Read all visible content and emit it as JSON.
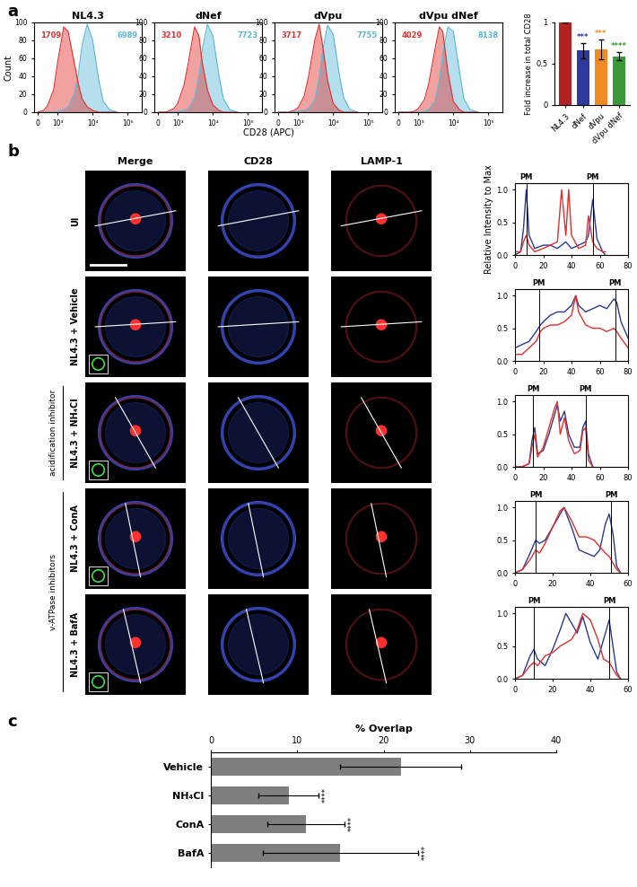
{
  "panel_labels": [
    "a",
    "b",
    "c"
  ],
  "shared_xlabel": "CD28 (APC)",
  "image_grid": {
    "columns": [
      "Merge",
      "CD28",
      "LAMP-1"
    ],
    "rows": [
      "UI",
      "NL4.3 + Vehicle",
      "NL4.3 + NH₄Cl",
      "NL4.3 + ConA",
      "NL4.3 + BafA"
    ],
    "groups": [
      {
        "label": "acidification inhibitor",
        "rows": [
          "NL4.3 + NH₄Cl"
        ]
      },
      {
        "label": "v-ATPase inhibitors",
        "rows": [
          "NL4.3 + ConA",
          "NL4.3 + BafA"
        ]
      }
    ]
  },
  "chart_data": [
    {
      "type": "area",
      "title": "NL4.3",
      "ylabel": "Count",
      "log": "x",
      "x": [
        0,
        300,
        500,
        800,
        1000,
        1500,
        2000,
        3000,
        4000,
        5000,
        7000,
        10000,
        15000,
        20000,
        30000,
        50000
      ],
      "xlim": [
        -200,
        250000
      ],
      "xticks": [
        0,
        {
          "value": 1000,
          "label": "10³"
        },
        {
          "value": 10000,
          "label": "10⁴"
        },
        {
          "value": 100000,
          "label": "10⁵"
        }
      ],
      "ylim": [
        0,
        100
      ],
      "yticks": [
        0,
        20,
        40,
        60,
        80,
        100
      ],
      "series": [
        {
          "color": "#5bb8d6",
          "mfi": 6989,
          "values": [
            0,
            0,
            0,
            0,
            1,
            3,
            6,
            20,
            45,
            75,
            98,
            80,
            35,
            12,
            3,
            0
          ]
        },
        {
          "color": "#e0302d",
          "mfi": 1709,
          "values": [
            0,
            2,
            8,
            25,
            55,
            95,
            90,
            55,
            30,
            15,
            6,
            2,
            0,
            0,
            0,
            0
          ]
        }
      ]
    },
    {
      "type": "area",
      "title": "dNef",
      "log": "x",
      "x": [
        0,
        300,
        500,
        800,
        1000,
        1500,
        2000,
        3000,
        4000,
        5000,
        7000,
        10000,
        15000,
        20000,
        30000,
        50000
      ],
      "xlim": [
        -200,
        250000
      ],
      "xticks": [
        0,
        {
          "value": 1000,
          "label": "10³"
        },
        {
          "value": 10000,
          "label": "10⁴"
        },
        {
          "value": 100000,
          "label": "10⁵"
        }
      ],
      "ylim": [
        0,
        100
      ],
      "yticks": [
        0,
        20,
        40,
        60,
        80,
        100
      ],
      "series": [
        {
          "color": "#5bb8d6",
          "mfi": 7723,
          "values": [
            0,
            0,
            0,
            0,
            1,
            2,
            4,
            15,
            40,
            70,
            98,
            85,
            40,
            15,
            3,
            0
          ]
        },
        {
          "color": "#e0302d",
          "mfi": 3210,
          "values": [
            0,
            0,
            1,
            4,
            10,
            30,
            55,
            95,
            85,
            55,
            25,
            8,
            2,
            0,
            0,
            0
          ]
        }
      ]
    },
    {
      "type": "area",
      "title": "dVpu",
      "log": "x",
      "x": [
        0,
        300,
        500,
        800,
        1000,
        1500,
        2000,
        3000,
        4000,
        5000,
        7000,
        10000,
        15000,
        20000,
        30000,
        50000
      ],
      "xlim": [
        -200,
        250000
      ],
      "xticks": [
        0,
        {
          "value": 1000,
          "label": "10³"
        },
        {
          "value": 10000,
          "label": "10⁴"
        },
        {
          "value": 100000,
          "label": "10⁵"
        }
      ],
      "ylim": [
        0,
        100
      ],
      "yticks": [
        0,
        20,
        40,
        60,
        80,
        100
      ],
      "series": [
        {
          "color": "#5bb8d6",
          "mfi": 7755,
          "values": [
            0,
            0,
            0,
            0,
            1,
            2,
            4,
            14,
            38,
            68,
            97,
            87,
            42,
            16,
            3,
            0
          ]
        },
        {
          "color": "#e0302d",
          "mfi": 3717,
          "values": [
            0,
            0,
            0,
            2,
            5,
            18,
            40,
            80,
            98,
            75,
            35,
            10,
            2,
            0,
            0,
            0
          ]
        }
      ]
    },
    {
      "type": "area",
      "title": "dVpu dNef",
      "log": "x",
      "x": [
        0,
        300,
        500,
        800,
        1000,
        1500,
        2000,
        3000,
        4000,
        5000,
        7000,
        10000,
        15000,
        20000,
        30000,
        50000
      ],
      "xlim": [
        -200,
        250000
      ],
      "xticks": [
        0,
        {
          "value": 1000,
          "label": "10³"
        },
        {
          "value": 10000,
          "label": "10⁴"
        },
        {
          "value": 100000,
          "label": "10⁵"
        }
      ],
      "ylim": [
        0,
        100
      ],
      "yticks": [
        0,
        20,
        40,
        60,
        80,
        100
      ],
      "series": [
        {
          "color": "#5bb8d6",
          "mfi": 8138,
          "values": [
            0,
            0,
            0,
            0,
            0,
            1,
            3,
            12,
            35,
            65,
            95,
            90,
            45,
            15,
            3,
            0
          ]
        },
        {
          "color": "#e0302d",
          "mfi": 4029,
          "values": [
            0,
            0,
            0,
            1,
            4,
            14,
            32,
            70,
            95,
            90,
            45,
            12,
            3,
            0,
            0,
            0
          ]
        }
      ]
    },
    {
      "type": "bar",
      "ylabel": "Fold increase in total CD28",
      "categories": [
        "NL4.3",
        "dNef",
        "dVpu",
        "dVpu dNef"
      ],
      "values": [
        1,
        0.66,
        0.67,
        0.59
      ],
      "errors": [
        0,
        0.09,
        0.12,
        0.05
      ],
      "significance": [
        null,
        "***",
        "***",
        "****"
      ],
      "colors": [
        "#b22222",
        "#2e3a9c",
        "#f08a24",
        "#3a9a3a"
      ],
      "ylim": [
        0,
        1
      ],
      "yticks": [
        0,
        0.5,
        1
      ]
    },
    {
      "type": "line",
      "ylabel": "Relative Intensity to Max",
      "x": [
        0,
        4,
        6,
        8,
        10,
        14,
        20,
        25,
        30,
        33,
        36,
        38,
        40,
        45,
        50,
        52,
        55,
        58,
        62,
        64
      ],
      "xlim": [
        0,
        80
      ],
      "xticks": [
        0,
        20,
        40,
        60,
        80
      ],
      "ylim": [
        0,
        1.1
      ],
      "yticks": [
        {
          "value": 0,
          "label": "0.0"
        },
        {
          "value": 0.5,
          "label": "0.5"
        },
        {
          "value": 1,
          "label": "1.0"
        }
      ],
      "pm_label": "PM",
      "pm_lines": [
        8,
        55
      ],
      "series": [
        {
          "color": "#2b3990",
          "values": [
            0,
            0.05,
            0.4,
            1.0,
            0.3,
            0.1,
            0.15,
            0.15,
            0.1,
            0.15,
            0.2,
            0.15,
            0.1,
            0.15,
            0.2,
            0.3,
            0.85,
            0.25,
            0.05,
            0
          ]
        },
        {
          "color": "#e0302d",
          "values": [
            0.05,
            0.05,
            0.2,
            0.3,
            0.15,
            0.05,
            0.1,
            0.15,
            0.2,
            1.0,
            0.3,
            1.0,
            0.3,
            0.1,
            0.15,
            0.6,
            0.2,
            0.1,
            0.05,
            0.05
          ]
        }
      ]
    },
    {
      "type": "line",
      "x": [
        0,
        5,
        10,
        15,
        18,
        20,
        25,
        30,
        35,
        40,
        43,
        45,
        50,
        55,
        60,
        65,
        70,
        72,
        75,
        80
      ],
      "xlim": [
        0,
        80
      ],
      "xticks": [
        0,
        20,
        40,
        60,
        80
      ],
      "ylim": [
        0,
        1.1
      ],
      "yticks": [
        {
          "value": 0,
          "label": "0.0"
        },
        {
          "value": 0.5,
          "label": "0.5"
        },
        {
          "value": 1,
          "label": "1.0"
        }
      ],
      "pm_label": "PM",
      "pm_lines": [
        17,
        71
      ],
      "series": [
        {
          "color": "#2b3990",
          "values": [
            0.2,
            0.25,
            0.3,
            0.45,
            0.55,
            0.6,
            0.7,
            0.75,
            0.75,
            0.85,
            1.0,
            0.85,
            0.75,
            0.8,
            0.85,
            0.8,
            0.95,
            0.9,
            0.6,
            0.35
          ]
        },
        {
          "color": "#e0302d",
          "values": [
            0.1,
            0.1,
            0.2,
            0.3,
            0.45,
            0.5,
            0.55,
            0.55,
            0.6,
            0.7,
            1.0,
            0.75,
            0.55,
            0.5,
            0.5,
            0.45,
            0.5,
            0.45,
            0.35,
            0.2
          ]
        }
      ]
    },
    {
      "type": "line",
      "x": [
        0,
        5,
        10,
        12,
        14,
        16,
        20,
        24,
        28,
        30,
        32,
        35,
        38,
        42,
        46,
        48,
        50,
        52,
        55
      ],
      "xlim": [
        0,
        80
      ],
      "xticks": [
        0,
        20,
        40,
        60,
        80
      ],
      "ylim": [
        0,
        1.1
      ],
      "yticks": [
        {
          "value": 0,
          "label": "0.0"
        },
        {
          "value": 0.5,
          "label": "0.5"
        },
        {
          "value": 1,
          "label": "1.0"
        }
      ],
      "pm_label": "PM",
      "pm_lines": [
        13,
        50
      ],
      "series": [
        {
          "color": "#2b3990",
          "values": [
            0,
            0,
            0.05,
            0.4,
            0.6,
            0.2,
            0.25,
            0.5,
            0.8,
            0.95,
            0.7,
            0.85,
            0.5,
            0.3,
            0.3,
            0.6,
            0.7,
            0.2,
            0
          ]
        },
        {
          "color": "#e0302d",
          "values": [
            0,
            0,
            0.05,
            0.3,
            0.5,
            0.15,
            0.3,
            0.6,
            0.9,
            1.0,
            0.5,
            0.75,
            0.4,
            0.2,
            0.25,
            0.55,
            0.6,
            0.1,
            0
          ]
        }
      ]
    },
    {
      "type": "line",
      "x": [
        0,
        4,
        8,
        11,
        13,
        16,
        20,
        24,
        26,
        30,
        34,
        38,
        42,
        45,
        48,
        50,
        52,
        54,
        56
      ],
      "xlim": [
        0,
        60
      ],
      "xticks": [
        0,
        20,
        40,
        60
      ],
      "ylim": [
        0,
        1.1
      ],
      "yticks": [
        {
          "value": 0,
          "label": "0.0"
        },
        {
          "value": 0.5,
          "label": "0.5"
        },
        {
          "value": 1,
          "label": "1.0"
        }
      ],
      "pm_label": "PM",
      "pm_lines": [
        11,
        51
      ],
      "series": [
        {
          "color": "#2b3990",
          "values": [
            0,
            0.05,
            0.3,
            0.5,
            0.45,
            0.5,
            0.7,
            0.9,
            1.0,
            0.7,
            0.35,
            0.3,
            0.25,
            0.35,
            0.75,
            0.9,
            0.6,
            0.1,
            0
          ]
        },
        {
          "color": "#e0302d",
          "values": [
            0,
            0.05,
            0.2,
            0.35,
            0.3,
            0.45,
            0.7,
            0.95,
            1.0,
            0.8,
            0.55,
            0.55,
            0.5,
            0.4,
            0.3,
            0.25,
            0.15,
            0.05,
            0
          ]
        }
      ]
    },
    {
      "type": "line",
      "x": [
        0,
        4,
        8,
        10,
        12,
        16,
        20,
        24,
        27,
        30,
        33,
        36,
        40,
        44,
        47,
        50,
        52,
        54,
        56
      ],
      "xlim": [
        0,
        60
      ],
      "xticks": [
        0,
        20,
        40,
        60
      ],
      "ylim": [
        0,
        1.1
      ],
      "yticks": [
        {
          "value": 0,
          "label": "0.0"
        },
        {
          "value": 0.5,
          "label": "0.5"
        },
        {
          "value": 1,
          "label": "1.0"
        }
      ],
      "pm_label": "PM",
      "pm_lines": [
        10,
        50
      ],
      "series": [
        {
          "color": "#2b3990",
          "values": [
            0,
            0.05,
            0.35,
            0.45,
            0.3,
            0.2,
            0.45,
            0.75,
            1.0,
            0.85,
            0.7,
            0.95,
            0.55,
            0.3,
            0.6,
            0.9,
            0.5,
            0.1,
            0
          ]
        },
        {
          "color": "#e0302d",
          "values": [
            0,
            0.05,
            0.2,
            0.25,
            0.2,
            0.35,
            0.4,
            0.5,
            0.55,
            0.6,
            0.75,
            1.0,
            0.9,
            0.6,
            0.3,
            0.25,
            0.15,
            0.05,
            0
          ]
        }
      ]
    },
    {
      "type": "bar",
      "orientation": "horizontal",
      "title": "% Overlap",
      "categories": [
        "Vehicle",
        "NH₄Cl",
        "ConA",
        "BafA"
      ],
      "values": [
        22,
        9,
        11,
        15
      ],
      "errors": [
        7,
        3.5,
        4.5,
        9
      ],
      "significance": [
        null,
        "****",
        "****",
        "****"
      ],
      "color": "#7f7f7f",
      "xlim": [
        0,
        40
      ],
      "xticks": [
        0,
        10,
        20,
        30,
        40
      ]
    }
  ]
}
